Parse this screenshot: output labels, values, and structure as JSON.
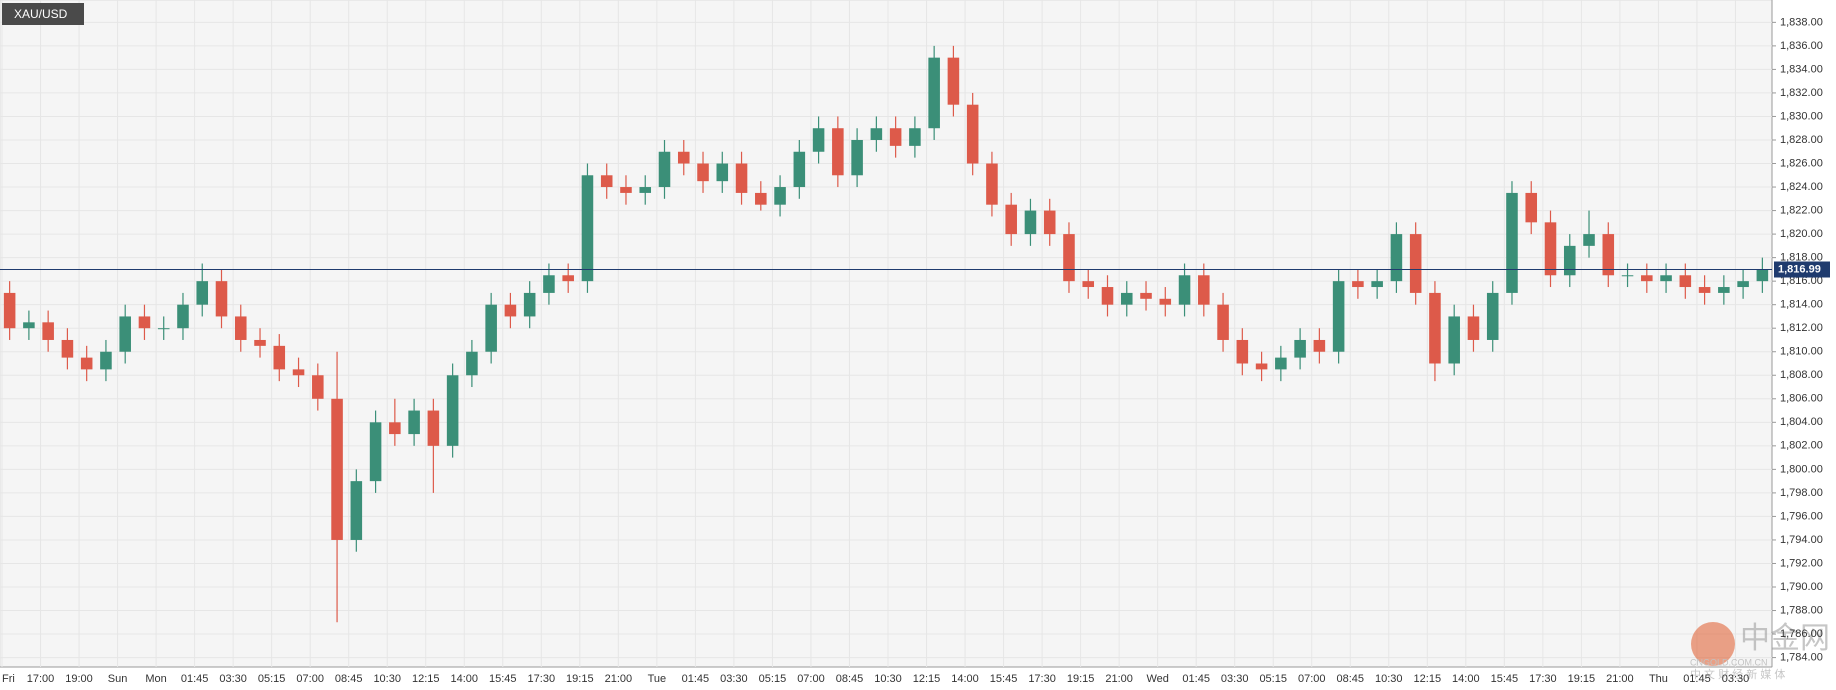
{
  "chart_data": {
    "type": "candlestick",
    "title": "XAU/USD",
    "categories": [
      "Fri",
      null,
      "17:00",
      null,
      "19:00",
      null,
      "Sun",
      null,
      "Mon",
      null,
      "01:45",
      null,
      "03:30",
      null,
      "05:15",
      null,
      "07:00",
      null,
      "08:45",
      null,
      "10:30",
      null,
      "12:15",
      null,
      "14:00",
      null,
      "15:45",
      null,
      "17:30",
      null,
      "19:15",
      null,
      "21:00",
      null,
      "Tue",
      null,
      "01:45",
      null,
      "03:30",
      null,
      "05:15",
      null,
      "07:00",
      null,
      "08:45",
      null,
      "10:30",
      null,
      "12:15",
      null,
      "14:00",
      null,
      "15:45",
      null,
      "17:30",
      null,
      "19:15",
      null,
      "21:00",
      null,
      "Wed",
      null,
      "01:45",
      null,
      "03:30",
      null,
      "05:15",
      null,
      "07:00",
      null,
      "08:45",
      null,
      "10:30",
      null,
      "12:15",
      null,
      "14:00",
      null,
      "15:45",
      null,
      "17:30",
      null,
      "19:15",
      null,
      "21:00",
      null,
      "Thu",
      null,
      "01:45",
      null,
      "03:30",
      null
    ],
    "open": [
      1815,
      1812,
      1812.5,
      1811,
      1809.5,
      1808.5,
      1810,
      1813,
      1812,
      1812,
      1814,
      1816,
      1813,
      1811,
      1810.5,
      1808.5,
      1808,
      1806,
      1794,
      1799,
      1804,
      1803,
      1805,
      1802,
      1808,
      1810,
      1814,
      1813,
      1815,
      1816.5,
      1816,
      1825,
      1824,
      1823.5,
      1824,
      1827,
      1826,
      1824.5,
      1826,
      1823.5,
      1822.5,
      1824,
      1827,
      1829,
      1825,
      1828,
      1829,
      1827.5,
      1829,
      1835,
      1831,
      1826,
      1822.5,
      1820,
      1822,
      1820,
      1816,
      1815.5,
      1814,
      1815,
      1814.5,
      1814,
      1816.5,
      1814,
      1811,
      1809,
      1808.5,
      1809.5,
      1811,
      1810,
      1816,
      1815.5,
      1816,
      1820,
      1815,
      1809,
      1813,
      1811,
      1815,
      1823.5,
      1821,
      1816.5,
      1819,
      1820,
      1816.5,
      1816.5,
      1816,
      1816.5,
      1815.5,
      1815,
      1815.5,
      1816
    ],
    "high": [
      1816,
      1813.5,
      1813.5,
      1812,
      1810.5,
      1811,
      1814,
      1814,
      1813,
      1815,
      1817.5,
      1817,
      1814,
      1812,
      1811.5,
      1809.5,
      1809,
      1810,
      1800,
      1805,
      1806,
      1806,
      1806,
      1809,
      1811,
      1815,
      1815,
      1816,
      1817.5,
      1817.5,
      1826,
      1826,
      1825,
      1825,
      1828,
      1828,
      1827,
      1827,
      1827,
      1824.5,
      1825,
      1828,
      1830,
      1830,
      1829,
      1830,
      1830,
      1830,
      1836,
      1836,
      1832,
      1827,
      1823.5,
      1823,
      1823,
      1821,
      1817,
      1816.5,
      1816,
      1816,
      1815.5,
      1817.5,
      1817.5,
      1815,
      1812,
      1810,
      1810.5,
      1812,
      1812,
      1817,
      1817,
      1817,
      1821,
      1821,
      1816,
      1814,
      1814,
      1816,
      1824.5,
      1824.5,
      1822,
      1820,
      1822,
      1821,
      1817.5,
      1817.5,
      1817.5,
      1817.5,
      1816.5,
      1816.5,
      1817,
      1818
    ],
    "low": [
      1811,
      1811,
      1810,
      1808.5,
      1807.5,
      1807.5,
      1809,
      1811,
      1811,
      1811,
      1813,
      1812,
      1810,
      1809.5,
      1807.5,
      1807,
      1805,
      1787,
      1793,
      1798,
      1802,
      1802,
      1798,
      1801,
      1807,
      1809,
      1812,
      1812,
      1814,
      1815,
      1815,
      1823,
      1822.5,
      1822.5,
      1823,
      1825,
      1823.5,
      1823.5,
      1822.5,
      1822,
      1821.5,
      1823,
      1826,
      1824,
      1824,
      1827,
      1826.5,
      1826.5,
      1828,
      1830,
      1825,
      1821.5,
      1819,
      1819,
      1819,
      1815,
      1814.5,
      1813,
      1813,
      1813.5,
      1813,
      1813,
      1813,
      1810,
      1808,
      1807.5,
      1807.5,
      1808.5,
      1809,
      1809,
      1814.5,
      1814.5,
      1815,
      1814,
      1807.5,
      1808,
      1810,
      1810,
      1814,
      1820,
      1815.5,
      1815.5,
      1818,
      1815.5,
      1815.5,
      1815,
      1815,
      1814.5,
      1814,
      1814,
      1814.5,
      1815
    ],
    "close": [
      1812,
      1812.5,
      1811,
      1809.5,
      1808.5,
      1810,
      1813,
      1812,
      1812,
      1814,
      1816,
      1813,
      1811,
      1810.5,
      1808.5,
      1808,
      1806,
      1794,
      1799,
      1804,
      1803,
      1805,
      1802,
      1808,
      1810,
      1814,
      1813,
      1815,
      1816.5,
      1816,
      1825,
      1824,
      1823.5,
      1824,
      1827,
      1826,
      1824.5,
      1826,
      1823.5,
      1822.5,
      1824,
      1827,
      1829,
      1825,
      1828,
      1829,
      1827.5,
      1829,
      1835,
      1831,
      1826,
      1822.5,
      1820,
      1822,
      1820,
      1816,
      1815.5,
      1814,
      1815,
      1814.5,
      1814,
      1816.5,
      1814,
      1811,
      1809,
      1808.5,
      1809.5,
      1811,
      1810,
      1816,
      1815.5,
      1816,
      1820,
      1815,
      1809,
      1813,
      1811,
      1815,
      1823.5,
      1821,
      1816.5,
      1819,
      1820,
      1816.5,
      1816.5,
      1816,
      1816.5,
      1815.5,
      1815,
      1815.5,
      1816,
      1816.99
    ],
    "up_color": "#3b8f78",
    "down_color": "#dd5a4a",
    "ylim": [
      1783.2,
      1839.9
    ],
    "yticks": [
      {
        "value": 1784,
        "label": "1,784.00"
      },
      {
        "value": 1786,
        "label": "1,786.00"
      },
      {
        "value": 1788,
        "label": "1,788.00"
      },
      {
        "value": 1790,
        "label": "1,790.00"
      },
      {
        "value": 1792,
        "label": "1,792.00"
      },
      {
        "value": 1794,
        "label": "1,794.00"
      },
      {
        "value": 1796,
        "label": "1,796.00"
      },
      {
        "value": 1798,
        "label": "1,798.00"
      },
      {
        "value": 1800,
        "label": "1,800.00"
      },
      {
        "value": 1802,
        "label": "1,802.00"
      },
      {
        "value": 1804,
        "label": "1,804.00"
      },
      {
        "value": 1806,
        "label": "1,806.00"
      },
      {
        "value": 1808,
        "label": "1,808.00"
      },
      {
        "value": 1810,
        "label": "1,810.00"
      },
      {
        "value": 1812,
        "label": "1,812.00"
      },
      {
        "value": 1814,
        "label": "1,814.00"
      },
      {
        "value": 1816,
        "label": "1,816.00"
      },
      {
        "value": 1818,
        "label": "1,818.00"
      },
      {
        "value": 1820,
        "label": "1,820.00"
      },
      {
        "value": 1822,
        "label": "1,822.00"
      },
      {
        "value": 1824,
        "label": "1,824.00"
      },
      {
        "value": 1826,
        "label": "1,826.00"
      },
      {
        "value": 1828,
        "label": "1,828.00"
      },
      {
        "value": 1830,
        "label": "1,830.00"
      },
      {
        "value": 1832,
        "label": "1,832.00"
      },
      {
        "value": 1834,
        "label": "1,834.00"
      },
      {
        "value": 1836,
        "label": "1,836.00"
      },
      {
        "value": 1838,
        "label": "1,838.00"
      }
    ],
    "grid": true,
    "last_price": 1816.99,
    "last_price_label": "1,816.99",
    "last_price_color": "#1f3b6e"
  },
  "watermark": {
    "logo": "中金网",
    "url": "CNGOLD.COM.CN",
    "tagline": "中 文 财 经 新 媒 体"
  }
}
